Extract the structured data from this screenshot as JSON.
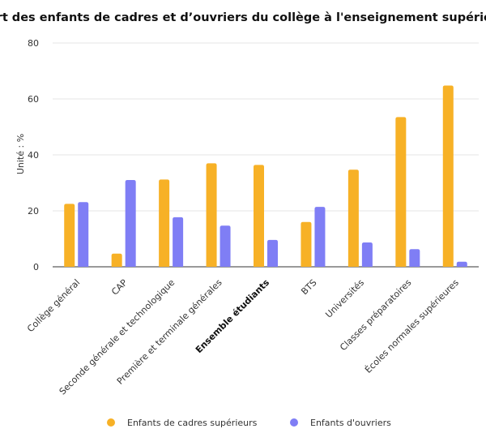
{
  "chart_data": {
    "type": "bar",
    "title": "Part des enfants de cadres et d’ouvriers du collège à l'enseignement supérieur",
    "ylabel": "Unité : %",
    "xlabel": "",
    "ylim": [
      0,
      80
    ],
    "yticks": [
      0,
      20,
      40,
      60,
      80
    ],
    "grid": true,
    "legend_position": "bottom",
    "categories": [
      "Collège général",
      "CAP",
      "Seconde générale et technologique",
      "Première et terminale générales",
      "Ensemble étudiants",
      "BTS",
      "Universités",
      "Classes préparatoires",
      "Écoles normales supérieures"
    ],
    "bold_categories": [
      "Ensemble étudiants"
    ],
    "series": [
      {
        "name": "Enfants de cadres supérieurs",
        "color": "#F7B126",
        "values": [
          22.5,
          4.7,
          31.2,
          37.0,
          36.4,
          16.0,
          34.7,
          53.5,
          64.8
        ]
      },
      {
        "name": "Enfants d'ouvriers",
        "color": "#7F7EF5",
        "values": [
          23.1,
          31.0,
          17.7,
          14.7,
          9.6,
          21.4,
          8.7,
          6.3,
          1.8
        ]
      }
    ]
  }
}
